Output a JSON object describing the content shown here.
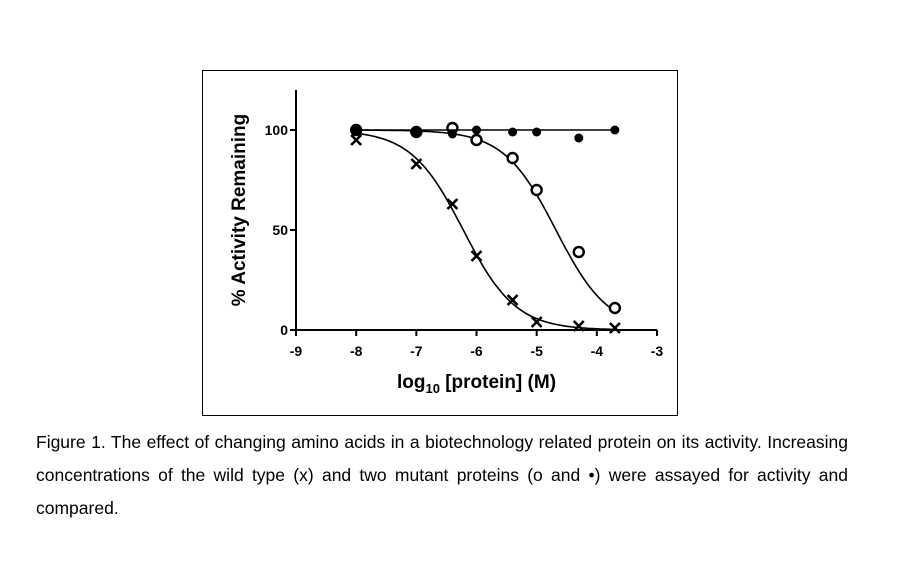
{
  "chart_data": {
    "type": "scatter",
    "xlabel_main": "log",
    "xlabel_sub": "10",
    "xlabel_rest": " [protein]  (M)",
    "ylabel": "% Activity Remaining",
    "xlim": [
      -9,
      -3
    ],
    "ylim": [
      0,
      120
    ],
    "xticks": [
      "-9",
      "-8",
      "-7",
      "-6",
      "-5",
      "-4",
      "-3"
    ],
    "yticks": [
      "0",
      "50",
      "100"
    ],
    "grid": false,
    "x": [
      -8,
      -7,
      -6.4,
      -6,
      -5.4,
      -5,
      -4.3,
      -3.7
    ],
    "series": [
      {
        "marker": "x",
        "values": [
          95,
          83,
          63,
          37,
          15,
          4,
          2,
          1
        ],
        "fit": {
          "top": 100,
          "bottom": 0,
          "log_ic50": -6.22,
          "hill": 1.0
        }
      },
      {
        "marker": "o",
        "values": [
          100,
          99,
          101,
          95,
          86,
          70,
          39,
          11
        ],
        "fit": {
          "top": 100,
          "bottom": 0,
          "log_ic50": -4.68,
          "hill": 1.0
        }
      },
      {
        "marker": "dot",
        "values": [
          100,
          99,
          98,
          100,
          99,
          99,
          96,
          100
        ],
        "fit": {
          "flat": 100
        }
      }
    ]
  },
  "caption": "Figure 1. The effect of changing amino acids in a biotechnology related protein on its activity. Increasing concentrations of the wild type (x) and two mutant proteins (o and •) were assayed for activity and compared."
}
